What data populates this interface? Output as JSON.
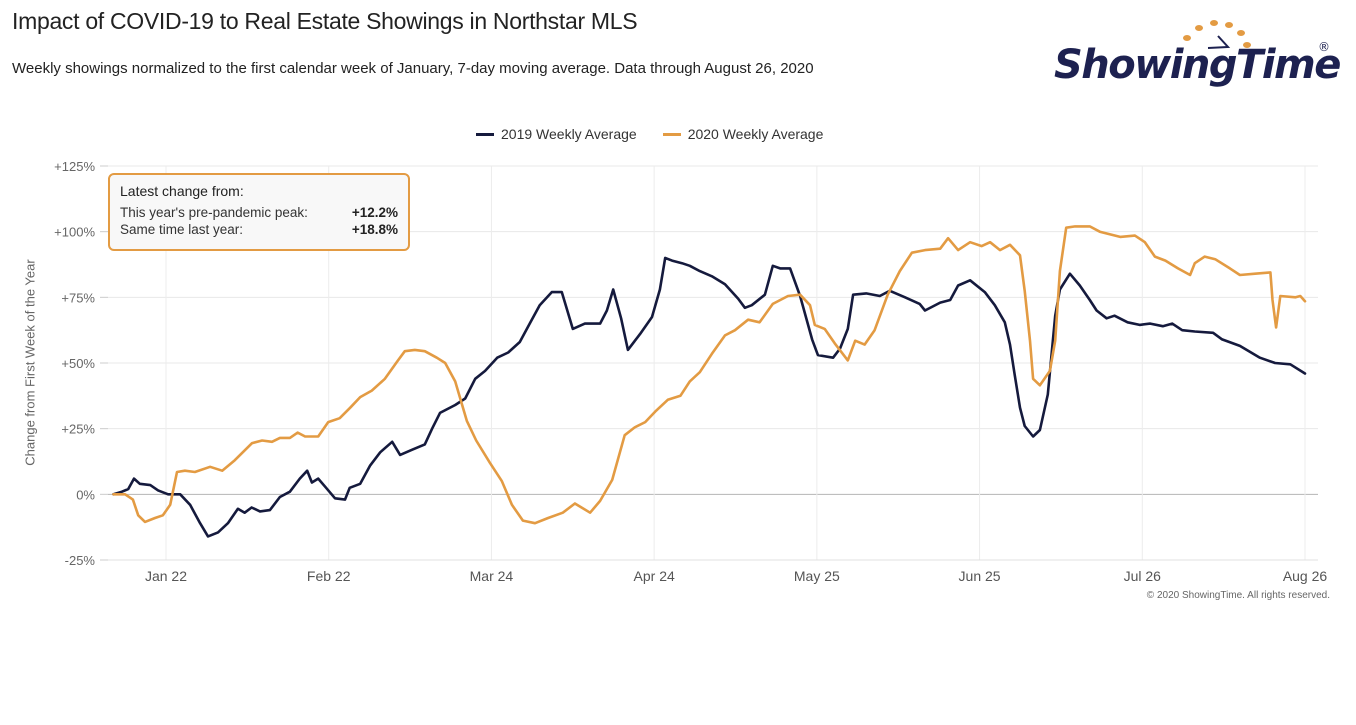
{
  "header": {
    "title": "Impact of COVID-19 to Real Estate Showings in Northstar MLS",
    "subtitle": "Weekly showings normalized to the first calendar week of January, 7-day moving average. Data through August 26, 2020"
  },
  "logo": {
    "text": "ShowingTime",
    "registered": "®",
    "dot_color": "#e39b43",
    "text_color": "#1d2150"
  },
  "info_box": {
    "title": "Latest change from:",
    "rows": [
      {
        "label": "This year's pre-pandemic peak:",
        "value": "+12.2%"
      },
      {
        "label": "Same time last year:",
        "value": "+18.8%"
      }
    ]
  },
  "footer": {
    "copyright": "© 2020 ShowingTime. All rights reserved."
  },
  "chart_data": {
    "type": "line",
    "title": "Impact of COVID-19 to Real Estate Showings in Northstar MLS",
    "xlabel": "",
    "ylabel": "Change from First Week of the Year",
    "x_unit": "day of year (Jan 1 = 0)",
    "xlim": [
      11,
      238
    ],
    "ylim": [
      -25,
      125
    ],
    "yticks": [
      -25,
      0,
      25,
      50,
      75,
      100,
      125
    ],
    "ytick_labels": [
      "-25%",
      "0%",
      "+25%",
      "+50%",
      "+75%",
      "+100%",
      "+125%"
    ],
    "xticks": [
      21,
      52,
      83,
      114,
      145,
      176,
      207,
      238
    ],
    "xtick_labels": [
      "Jan 22",
      "Feb 22",
      "Mar 24",
      "Apr 24",
      "May 25",
      "Jun 25",
      "Jul 26",
      "Aug 26"
    ],
    "grid": true,
    "legend_position": "top-center",
    "series": [
      {
        "name": "2019 Weekly Average",
        "color": "#151a3d",
        "x": [
          11,
          12.6,
          13.8,
          14.9,
          16,
          18,
          19.5,
          21.4,
          23.7,
          25.6,
          27.5,
          29,
          30.9,
          32.8,
          34.7,
          36,
          37.3,
          38.9,
          40.8,
          42.7,
          44.6,
          46.5,
          47.9,
          48.8,
          50,
          51.5,
          53.2,
          55.1,
          56,
          58,
          59.9,
          61.8,
          64.1,
          65.6,
          67.9,
          70.3,
          71.7,
          73.2,
          76.1,
          78,
          79.9,
          81.8,
          84.1,
          86.2,
          88.4,
          90.3,
          92.2,
          94.5,
          96.4,
          98.5,
          100.8,
          103.7,
          105,
          106.2,
          107.7,
          109,
          111.3,
          113.6,
          115.1,
          116.1,
          117.4,
          119.3,
          120.8,
          122.7,
          125,
          127.5,
          130,
          131.3,
          132.6,
          135.1,
          136.6,
          138,
          139.9,
          141.8,
          144.1,
          145.2,
          148.1,
          149.4,
          150.9,
          151.9,
          154.4,
          157,
          158.9,
          161.8,
          164.6,
          165.6,
          168.5,
          170.4,
          171.9,
          174.2,
          177,
          178.9,
          180.8,
          181.8,
          182.7,
          183.7,
          184.6,
          186.2,
          187.5,
          189,
          190.4,
          191.3,
          193.2,
          195.1,
          197,
          198.3,
          200.2,
          201.7,
          204.2,
          206.5,
          208.5,
          210.9,
          212.7,
          214.6,
          217,
          220.5,
          222.2,
          225.6,
          229.4,
          232.3,
          235.2,
          238
        ],
        "y": [
          0,
          1,
          2,
          6,
          4,
          3.5,
          1.5,
          0,
          0,
          -4,
          -11,
          -16,
          -14.5,
          -11,
          -5.5,
          -7,
          -5,
          -6.5,
          -6,
          -1,
          1,
          6,
          9,
          4.5,
          6,
          2.5,
          -1.5,
          -2,
          2.5,
          4,
          11,
          16,
          20,
          15,
          17,
          19,
          25,
          31,
          34,
          36.5,
          44,
          47,
          52,
          54,
          58,
          65,
          72,
          77,
          77,
          63,
          65,
          65,
          70,
          78,
          67,
          55,
          61,
          67.5,
          78,
          90,
          89,
          88,
          87,
          85,
          83,
          80,
          74.5,
          71,
          72,
          76,
          87,
          86,
          86,
          75.5,
          59,
          53,
          52,
          55.5,
          63,
          76,
          76.5,
          75.5,
          77.5,
          75,
          72.5,
          70,
          73,
          74,
          79.5,
          81.5,
          77,
          72,
          65.5,
          57,
          45.5,
          33,
          26,
          22,
          24.5,
          38,
          68,
          78,
          84,
          79.5,
          74,
          70,
          67,
          68,
          65.5,
          64.5,
          65,
          64,
          65,
          62.5,
          62,
          61.5,
          59,
          56.5,
          52,
          50,
          49.5,
          46
        ]
      },
      {
        "name": "2020 Weekly Average",
        "color": "#e39b43",
        "x": [
          11,
          13.2,
          14.7,
          15.7,
          17,
          18.9,
          20.4,
          21.8,
          23.1,
          24.6,
          26.5,
          29.4,
          31.7,
          34.1,
          37.4,
          39.3,
          41.2,
          42.7,
          44.6,
          46.1,
          47.5,
          50,
          51.9,
          54.1,
          56.1,
          58,
          60.2,
          62.7,
          65.2,
          66.5,
          68.4,
          70.3,
          72.6,
          74.2,
          76.1,
          78.3,
          80.1,
          82.7,
          85,
          86.9,
          89,
          91.3,
          93.8,
          96.6,
          98.9,
          101.8,
          103.7,
          106,
          108.4,
          110.3,
          112.3,
          114.2,
          116.6,
          119,
          120.8,
          122.7,
          125,
          127.5,
          129.4,
          131.9,
          134.1,
          136.6,
          139.5,
          141.8,
          143.7,
          144.6,
          146.5,
          148.4,
          150.9,
          152.3,
          154.1,
          156,
          158.5,
          160.8,
          163.1,
          165.6,
          168.5,
          170,
          171.9,
          174.2,
          176.4,
          178,
          179.9,
          181.8,
          183.7,
          184.6,
          185.6,
          186.2,
          187.5,
          189.4,
          190.4,
          191.3,
          192.5,
          194.2,
          197,
          198.9,
          200.8,
          202.8,
          205.6,
          207.5,
          209.4,
          211.4,
          213.8,
          216.1,
          217,
          218.9,
          220.9,
          223.7,
          225.6,
          228.5,
          231.4,
          231.8,
          232.5,
          233.3,
          236.2,
          237.1,
          238
        ],
        "y": [
          0,
          0,
          -2,
          -8,
          -10.5,
          -9,
          -8,
          -4,
          8.5,
          9,
          8.5,
          10.5,
          9,
          13,
          19.5,
          20.5,
          20,
          21.5,
          21.5,
          23.5,
          22,
          22,
          27.5,
          29,
          33,
          37,
          39.5,
          44,
          51,
          54.5,
          55,
          54.5,
          52,
          50,
          43,
          28,
          20.5,
          12,
          5,
          -4,
          -10,
          -11,
          -9,
          -7,
          -3.5,
          -7,
          -2.5,
          5.5,
          22.5,
          25.5,
          27.5,
          31.5,
          36,
          37.5,
          43,
          46.5,
          53.5,
          60.5,
          62.5,
          66.5,
          65.5,
          72.5,
          75.5,
          76,
          72,
          64.5,
          63,
          57.5,
          51,
          58.5,
          57,
          62.5,
          76,
          85,
          92,
          93,
          93.5,
          97.5,
          93,
          96,
          94.5,
          96,
          93,
          95,
          91,
          77.5,
          58.5,
          44,
          41.5,
          47,
          58.5,
          85,
          101.5,
          102,
          102,
          100,
          99,
          98,
          98.5,
          96,
          90.5,
          89,
          86,
          83.5,
          88,
          90.5,
          89.5,
          86,
          83.5,
          84,
          84.5,
          74,
          63.5,
          75.5,
          75,
          75.5,
          73.5
        ]
      }
    ]
  }
}
